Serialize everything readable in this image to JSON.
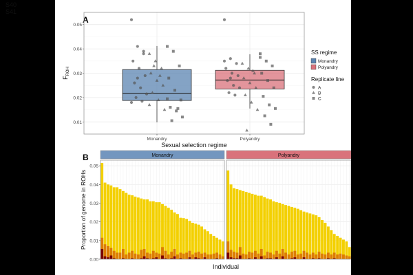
{
  "page_numbers": [
    "S40",
    "S41"
  ],
  "chart_data": [
    {
      "panel": "A",
      "type": "box",
      "xlabel": "Sexual selection regime",
      "ylabel_main": "F",
      "ylabel_sub": "ROH",
      "ylim": [
        0.005,
        0.055
      ],
      "yticks": [
        "0.01",
        "0.02",
        "0.03",
        "0.04",
        "0.05"
      ],
      "categories": [
        "Monandry",
        "Polyandry"
      ],
      "boxes": [
        {
          "name": "Monandry",
          "color": "#5b84b1",
          "min": 0.0098,
          "q1": 0.0188,
          "median": 0.0218,
          "q3": 0.0315,
          "max": 0.0412
        },
        {
          "name": "Polyandry",
          "color": "#d9727b",
          "min": 0.0155,
          "q1": 0.0235,
          "median": 0.0272,
          "q3": 0.0312,
          "max": 0.0378
        }
      ],
      "points": [
        {
          "group": "Monandry",
          "line": "A",
          "values": [
            0.052,
            0.041,
            0.038,
            0.035,
            0.032,
            0.029,
            0.026,
            0.024,
            0.0215,
            0.02,
            0.0185,
            0.018,
            0.028,
            0.039
          ]
        },
        {
          "group": "Monandry",
          "line": "B",
          "values": [
            0.038,
            0.035,
            0.032,
            0.03,
            0.027,
            0.025,
            0.022,
            0.019,
            0.015,
            0.033,
            0.029,
            0.017
          ]
        },
        {
          "group": "Monandry",
          "line": "C",
          "values": [
            0.041,
            0.039,
            0.033,
            0.028,
            0.023,
            0.019,
            0.016,
            0.0145,
            0.012,
            0.0105,
            0.0155,
            0.0195
          ]
        },
        {
          "group": "Polyandry",
          "line": "A",
          "values": [
            0.052,
            0.036,
            0.034,
            0.032,
            0.03,
            0.029,
            0.027,
            0.025,
            0.024,
            0.022,
            0.021,
            0.035,
            0.028
          ]
        },
        {
          "group": "Polyandry",
          "line": "B",
          "values": [
            0.034,
            0.032,
            0.03,
            0.028,
            0.026,
            0.024,
            0.021,
            0.018,
            0.015,
            0.0065,
            0.031
          ]
        },
        {
          "group": "Polyandry",
          "line": "C",
          "values": [
            0.038,
            0.035,
            0.033,
            0.03,
            0.027,
            0.024,
            0.0205,
            0.017,
            0.0155,
            0.0125,
            0.009,
            0.0365
          ]
        }
      ],
      "legend": {
        "position": "right",
        "ss_title": "SS regime",
        "ss_entries": [
          {
            "label": "Monandry",
            "color": "#5b84b1"
          },
          {
            "label": "Polyandry",
            "color": "#d9727b"
          }
        ],
        "line_title": "Replicate line",
        "line_entries": [
          {
            "label": "A",
            "shape": "circle"
          },
          {
            "label": "B",
            "shape": "triangle"
          },
          {
            "label": "C",
            "shape": "square"
          }
        ]
      }
    },
    {
      "panel": "B",
      "type": "bar",
      "stacked": true,
      "xlabel": "Individual",
      "ylabel": "Proportion of genome in ROHs",
      "ylim": [
        0,
        0.053
      ],
      "yticks": [
        "0.00",
        "0.01",
        "0.02",
        "0.03",
        "0.04",
        "0.05"
      ],
      "layer_colors": [
        "#f3d000",
        "#dd7d00",
        "#7b0000"
      ],
      "facets": [
        {
          "title": "Monandry",
          "strip_color": "#7396bf",
          "totals": [
            0.0515,
            0.041,
            0.04,
            0.0395,
            0.0385,
            0.0385,
            0.0375,
            0.0365,
            0.0355,
            0.0345,
            0.0342,
            0.0335,
            0.033,
            0.0325,
            0.032,
            0.032,
            0.031,
            0.031,
            0.0305,
            0.0305,
            0.0295,
            0.0285,
            0.0275,
            0.0265,
            0.025,
            0.0242,
            0.0222,
            0.022,
            0.0215,
            0.0205,
            0.0195,
            0.019,
            0.0185,
            0.0175,
            0.016,
            0.015,
            0.0135,
            0.0125,
            0.0115,
            0.0105,
            0.0095
          ],
          "mid": [
            0.0115,
            0.008,
            0.007,
            0.006,
            0.0045,
            0.0035,
            0.0035,
            0.0055,
            0.0025,
            0.0035,
            0.0045,
            0.003,
            0.0025,
            0.005,
            0.0055,
            0.0035,
            0.003,
            0.0045,
            0.0035,
            0.003,
            0.0065,
            0.0045,
            0.0025,
            0.004,
            0.0055,
            0.0025,
            0.0035,
            0.003,
            0.0035,
            0.0045,
            0.0025,
            0.0035,
            0.004,
            0.003,
            0.0035,
            0.0025,
            0.0025,
            0.003,
            0.0035,
            0.0025,
            0.0015
          ],
          "low": [
            0.0055,
            0.0015,
            0.001,
            0.002,
            0.0005,
            0,
            0,
            0.0005,
            0,
            0,
            0.0005,
            0,
            0,
            0.0005,
            0.0015,
            0.0005,
            0,
            0.0005,
            0.001,
            0,
            0.002,
            0.0005,
            0,
            0.0005,
            0.0015,
            0,
            0.0005,
            0,
            0,
            0.001,
            0,
            0.001,
            0.0005,
            0,
            0.001,
            0,
            0,
            0,
            0.0005,
            0,
            0
          ]
        },
        {
          "title": "Polyandry",
          "strip_color": "#d9727b",
          "totals": [
            0.0475,
            0.04,
            0.038,
            0.0375,
            0.037,
            0.0365,
            0.036,
            0.0355,
            0.035,
            0.0345,
            0.034,
            0.034,
            0.0332,
            0.0325,
            0.032,
            0.031,
            0.0305,
            0.0302,
            0.0295,
            0.029,
            0.0285,
            0.028,
            0.0275,
            0.027,
            0.0262,
            0.0255,
            0.025,
            0.0245,
            0.024,
            0.0235,
            0.0225,
            0.021,
            0.0195,
            0.0175,
            0.0155,
            0.0135,
            0.0125,
            0.0115,
            0.0105,
            0.0095,
            0.0065
          ],
          "mid": [
            0.0095,
            0.005,
            0.004,
            0.0035,
            0.0065,
            0.003,
            0.0025,
            0.004,
            0.0035,
            0.0045,
            0.003,
            0.0055,
            0.002,
            0.004,
            0.0035,
            0.0025,
            0.0045,
            0.003,
            0.0055,
            0.0035,
            0.0025,
            0.004,
            0.0045,
            0.0025,
            0.003,
            0.0045,
            0.0035,
            0.0025,
            0.0035,
            0.0025,
            0.004,
            0.003,
            0.0025,
            0.0035,
            0.0025,
            0.0035,
            0.0025,
            0.003,
            0.0025,
            0.002,
            0.0015
          ],
          "low": [
            0.0035,
            0.001,
            0.0005,
            0.0005,
            0.002,
            0,
            0,
            0.0005,
            0,
            0.001,
            0,
            0.0015,
            0,
            0.0005,
            0.0005,
            0,
            0.001,
            0,
            0.0015,
            0,
            0,
            0.0005,
            0.001,
            0,
            0,
            0.001,
            0,
            0,
            0.0005,
            0,
            0.0005,
            0,
            0,
            0.0005,
            0,
            0.0005,
            0,
            0,
            0,
            0,
            0
          ]
        }
      ]
    }
  ]
}
